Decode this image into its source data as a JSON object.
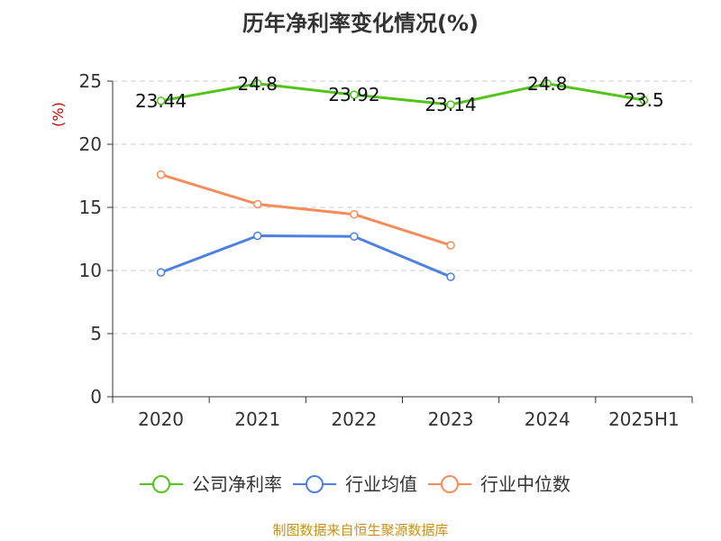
{
  "chart_data": {
    "type": "line",
    "title": "历年净利率变化情况(%)",
    "ylabel": "(%)",
    "xlabel": "",
    "categories": [
      "2020",
      "2021",
      "2022",
      "2023",
      "2024",
      "2025H1"
    ],
    "ylim": [
      0,
      25
    ],
    "yticks": [
      0,
      5,
      10,
      15,
      20,
      25
    ],
    "grid": true,
    "legend_position": "bottom",
    "series": [
      {
        "name": "公司净利率",
        "color": "#52c41a",
        "values": [
          23.44,
          24.8,
          23.92,
          23.14,
          24.8,
          23.5
        ],
        "labels": [
          "23.44",
          "24.8",
          "23.92",
          "23.14",
          "24.8",
          "23.5"
        ]
      },
      {
        "name": "行业均值",
        "color": "#4e80e0",
        "values": [
          9.85,
          12.75,
          12.7,
          9.5,
          null,
          null
        ]
      },
      {
        "name": "行业中位数",
        "color": "#f58d5a",
        "values": [
          17.6,
          15.25,
          14.45,
          12.0,
          null,
          null
        ]
      }
    ]
  },
  "source": "制图数据来自恒生聚源数据库",
  "colors": {
    "unit": "#cc0000",
    "source": "#c69214",
    "grid": "#cccccc",
    "axis": "#333333"
  }
}
